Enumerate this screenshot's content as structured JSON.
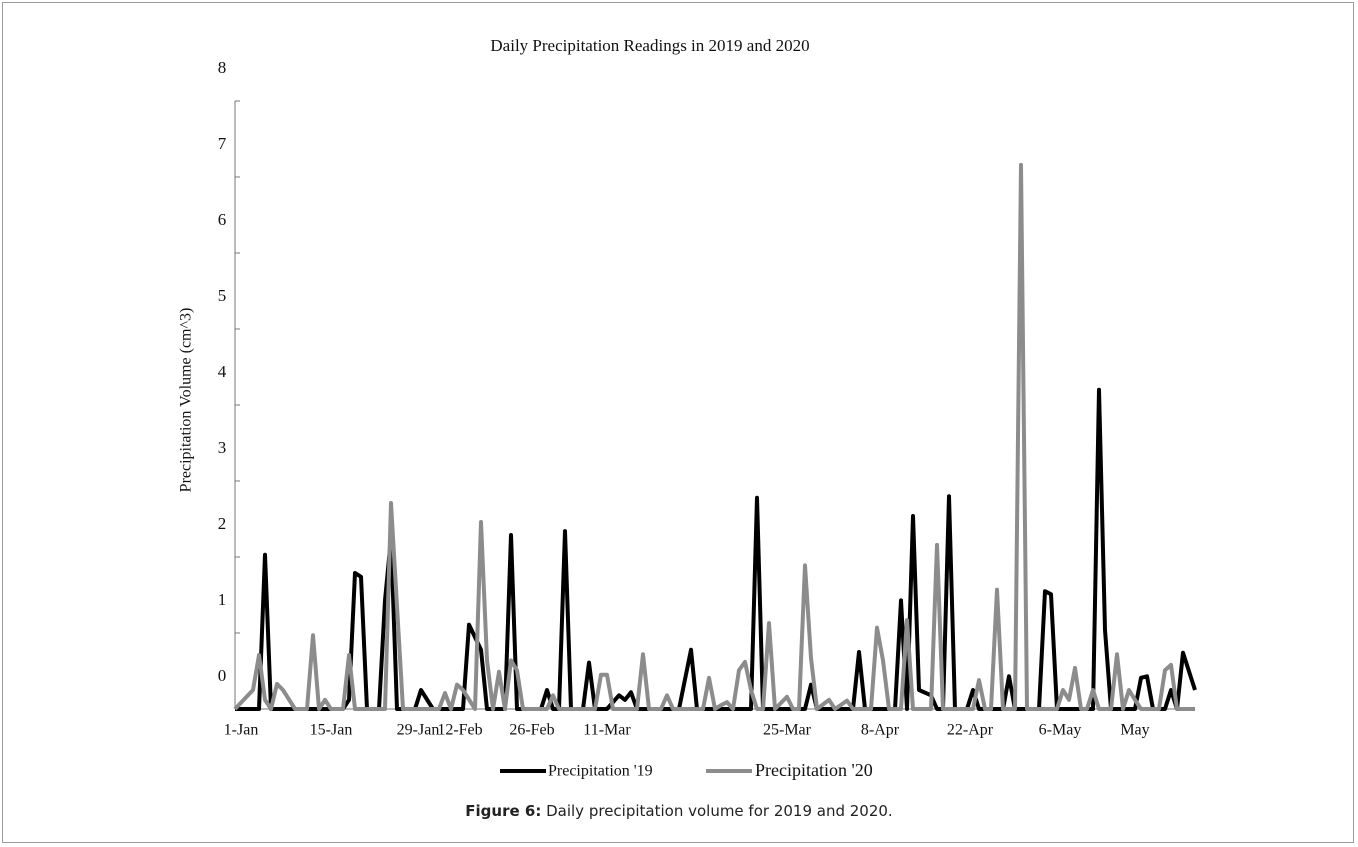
{
  "chart_data": {
    "type": "line",
    "title": "Daily Precipitation Readings in 2019 and 2020",
    "y_label": "Precipitation  Volume  (cm^3)",
    "xlim": [
      0,
      160
    ],
    "ylim": [
      0,
      8
    ],
    "xticks": [
      {
        "value": 1,
        "label": "1-Jan"
      },
      {
        "value": 16,
        "label": "15-Jan"
      },
      {
        "value": 30.5,
        "label": "29-Jan"
      },
      {
        "value": 37.5,
        "label": "12-Feb"
      },
      {
        "value": 49.5,
        "label": "26-Feb"
      },
      {
        "value": 62,
        "label": "11-Mar"
      },
      {
        "value": 92,
        "label": "25-Mar"
      },
      {
        "value": 107.5,
        "label": "8-Apr"
      },
      {
        "value": 122.5,
        "label": "22-Apr"
      },
      {
        "value": 137.5,
        "label": "6-May"
      },
      {
        "value": 150,
        "label": "May"
      }
    ],
    "yticks": [
      0,
      1,
      2,
      3,
      4,
      5,
      6,
      7,
      8
    ],
    "series": [
      {
        "name": "Precipitation  '19",
        "color": "#000000",
        "x": [
          0,
          4,
          5,
          6,
          18,
          19,
          20,
          21,
          22,
          24,
          25,
          26,
          27,
          30,
          31,
          33,
          38,
          39,
          41,
          42,
          45,
          46,
          47,
          51,
          52,
          53,
          54,
          55,
          56,
          58,
          59,
          60,
          62,
          63,
          64,
          65,
          66,
          67,
          74,
          76,
          77,
          86,
          87,
          88,
          95,
          96,
          97,
          103,
          104,
          105,
          110,
          111,
          112,
          113,
          114,
          116,
          117,
          118,
          119,
          120,
          122,
          123,
          124,
          128,
          129,
          130,
          134,
          135,
          136,
          137,
          143,
          144,
          145,
          146,
          150,
          151,
          152,
          153,
          155,
          156,
          157,
          158,
          160
        ],
        "values": [
          0,
          0,
          2.03,
          0,
          0,
          0.12,
          1.79,
          1.74,
          0,
          0,
          1.43,
          2.25,
          0,
          0,
          0.25,
          0,
          0,
          1.11,
          0.78,
          0,
          0,
          2.29,
          0,
          0,
          0.25,
          0,
          0,
          2.34,
          0,
          0,
          0.61,
          0,
          0,
          0.09,
          0.18,
          0.12,
          0.22,
          0,
          0,
          0.78,
          0,
          0,
          2.78,
          0,
          0,
          0.32,
          0,
          0,
          0.75,
          0,
          0,
          1.43,
          0,
          2.54,
          0.25,
          0.18,
          0,
          0,
          2.8,
          0,
          0,
          0.25,
          0,
          0,
          0.43,
          0,
          0,
          1.55,
          1.51,
          0,
          0,
          4.2,
          1.04,
          0,
          0,
          0.41,
          0.43,
          0,
          0,
          0.25,
          0,
          0.74,
          0.25
        ]
      },
      {
        "name": "Precipitation '20",
        "color": "#8c8c8c",
        "x": [
          0,
          3,
          4,
          5,
          6,
          7,
          8,
          10,
          12,
          13,
          14,
          15,
          16,
          18,
          19,
          20,
          25,
          26,
          28,
          34,
          35,
          36,
          37,
          38,
          40,
          41,
          42,
          43,
          44,
          45,
          46,
          47,
          48,
          52,
          53,
          54,
          60,
          61,
          62,
          63,
          67,
          68,
          69,
          71,
          72,
          73,
          78,
          79,
          80,
          81,
          82,
          83,
          84,
          85,
          86,
          87,
          88,
          89,
          90,
          92,
          93,
          94,
          95,
          96,
          97,
          99,
          100,
          102,
          103,
          106,
          107,
          108,
          109,
          111,
          112,
          113,
          116,
          117,
          118,
          123,
          124,
          125,
          126,
          127,
          128,
          130,
          131,
          132,
          137,
          138,
          139,
          140,
          141,
          142,
          143,
          144,
          146,
          147,
          148,
          149,
          150,
          151,
          154,
          155,
          156,
          157,
          160
        ],
        "values": [
          0,
          0.25,
          0.71,
          0.12,
          0,
          0.33,
          0.25,
          0,
          0,
          0.97,
          0,
          0.12,
          0,
          0,
          0.71,
          0,
          0,
          2.71,
          0,
          0,
          0.21,
          0,
          0.32,
          0.25,
          0,
          2.46,
          0.64,
          0,
          0.49,
          0,
          0.64,
          0.51,
          0,
          0,
          0.18,
          0,
          0,
          0.45,
          0.45,
          0,
          0,
          0.72,
          0,
          0,
          0.18,
          0,
          0,
          0.41,
          0,
          0.05,
          0.09,
          0,
          0.51,
          0.62,
          0.25,
          0,
          0,
          1.13,
          0,
          0.16,
          0,
          0,
          1.89,
          0.67,
          0,
          0.12,
          0,
          0.11,
          0,
          0,
          1.07,
          0.64,
          0,
          0,
          1.17,
          0,
          0,
          2.16,
          0,
          0,
          0.38,
          0,
          0,
          1.57,
          0,
          0,
          7.16,
          0,
          0,
          0.25,
          0.12,
          0.54,
          0,
          0,
          0.25,
          0,
          0,
          0.72,
          0,
          0.25,
          0.12,
          0,
          0,
          0.51,
          0.58,
          0,
          0
        ]
      }
    ]
  },
  "caption": {
    "label": "Figure 6:",
    "text": "Daily precipitation volume for 2019 and 2020."
  }
}
